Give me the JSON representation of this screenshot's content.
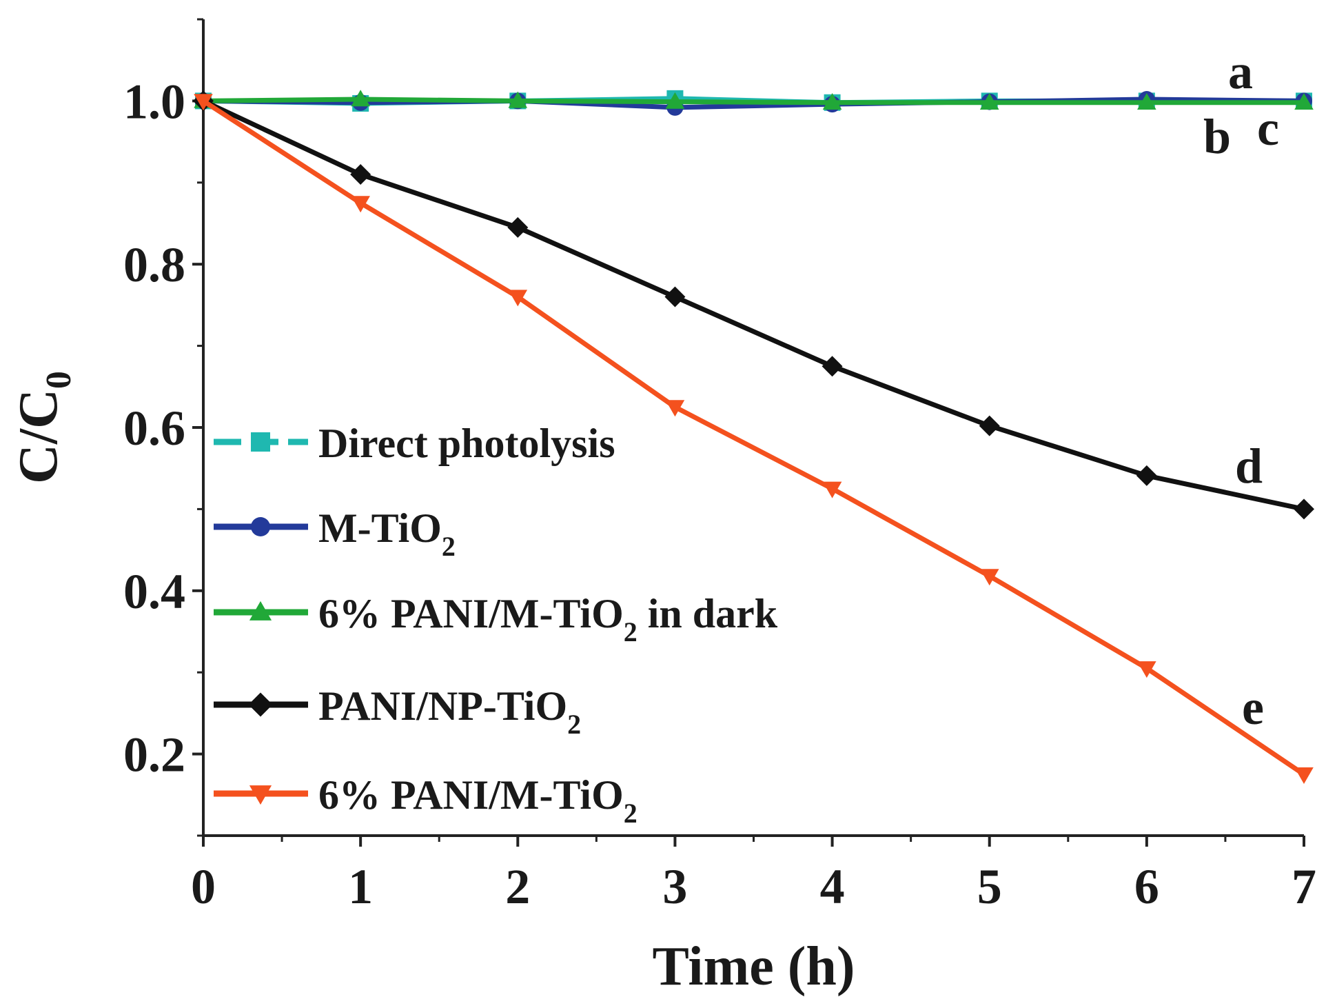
{
  "chart_data": {
    "type": "line",
    "xlabel": "Time (h)",
    "ylabel": "C/C",
    "ylabel_sub": "0",
    "xlim": [
      0,
      7
    ],
    "ylim": [
      0.1,
      1.1
    ],
    "x_ticks": [
      "0",
      "1",
      "2",
      "3",
      "4",
      "5",
      "6",
      "7"
    ],
    "y_ticks": [
      "0.2",
      "0.4",
      "0.6",
      "0.8",
      "1.0"
    ],
    "x": [
      0,
      1,
      2,
      3,
      4,
      5,
      6,
      7
    ],
    "grid": false,
    "legend_position": "left",
    "series": [
      {
        "name": "Direct photolysis",
        "name_sub": "",
        "name_tail": "",
        "color": "#1fb8b0",
        "marker": "square",
        "dashed": true,
        "curve_label": "a",
        "values": [
          1.0,
          0.997,
          1.0,
          1.003,
          0.998,
          1.0,
          1.0,
          1.0
        ]
      },
      {
        "name": "M-TiO",
        "name_sub": "2",
        "name_tail": "",
        "color": "#233a9a",
        "marker": "circle",
        "dashed": false,
        "curve_label": "b",
        "values": [
          1.0,
          0.998,
          1.0,
          0.992,
          0.996,
          0.999,
          1.002,
          1.0
        ]
      },
      {
        "name": "6% PANI/M-TiO",
        "name_sub": "2",
        "name_tail": " in dark",
        "color": "#21a838",
        "marker": "triangle-up",
        "dashed": false,
        "curve_label": "c",
        "values": [
          1.0,
          1.002,
          1.0,
          0.999,
          0.998,
          0.998,
          0.998,
          0.998
        ]
      },
      {
        "name": "PANI/NP-TiO",
        "name_sub": "2",
        "name_tail": "",
        "color": "#111111",
        "marker": "diamond",
        "dashed": false,
        "curve_label": "d",
        "values": [
          1.0,
          0.91,
          0.845,
          0.76,
          0.675,
          0.602,
          0.541,
          0.5
        ]
      },
      {
        "name": "6% PANI/M-TiO",
        "name_sub": "2",
        "name_tail": "",
        "color": "#f4511e",
        "marker": "triangle-down",
        "dashed": false,
        "curve_label": "e",
        "values": [
          1.0,
          0.875,
          0.76,
          0.625,
          0.525,
          0.418,
          0.305,
          0.175
        ]
      }
    ]
  }
}
